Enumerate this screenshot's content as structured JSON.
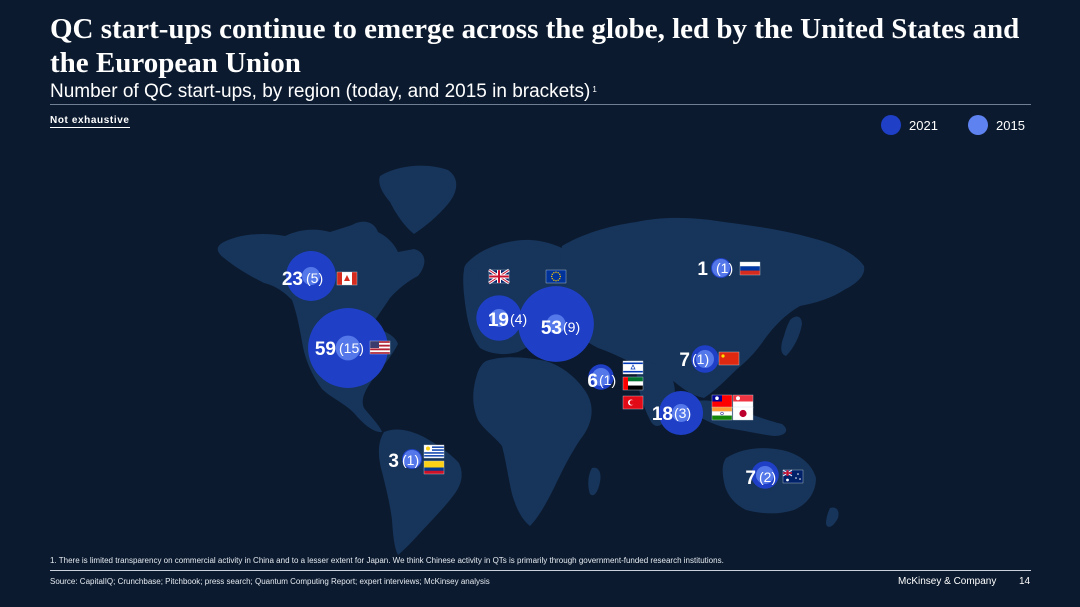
{
  "title": "QC start-ups continue to emerge across the globe, led by the United States and the European Union",
  "subtitle": "Number of QC start-ups, by region (today, and 2015 in brackets)",
  "subtitle_sup": "1",
  "note": "Not exhaustive",
  "colors": {
    "background": "#0b1a2e",
    "land": "#17345a",
    "bubble_2021": "#1f40c6",
    "bubble_2015": "#5e82f0"
  },
  "chart_data": {
    "type": "bubble-map",
    "title": "Number of QC start-ups, by region (today, and 2015 in brackets)",
    "legend": [
      {
        "label": "2021",
        "color": "#1f40c6"
      },
      {
        "label": "2015",
        "color": "#5e82f0"
      }
    ],
    "regions": [
      {
        "id": "canada",
        "name": "Canada",
        "value_2021": 23,
        "value_2015": 5,
        "label_2021": "23",
        "label_2015": "(5)",
        "flags": [
          "canada-flag"
        ]
      },
      {
        "id": "usa",
        "name": "United States",
        "value_2021": 59,
        "value_2015": 15,
        "label_2021": "59",
        "label_2015": "(15)",
        "flags": [
          "usa-flag"
        ]
      },
      {
        "id": "uk",
        "name": "United Kingdom",
        "value_2021": 19,
        "value_2015": 4,
        "label_2021": "19",
        "label_2015": "(4)",
        "flags": [
          "uk-flag"
        ]
      },
      {
        "id": "eu",
        "name": "European Union",
        "value_2021": 53,
        "value_2015": 9,
        "label_2021": "53",
        "label_2015": "(9)",
        "flags": [
          "eu-flag"
        ]
      },
      {
        "id": "russia",
        "name": "Russia",
        "value_2021": 1,
        "value_2015": 1,
        "label_2021": "1",
        "label_2015": "(1)",
        "flags": [
          "russia-flag"
        ]
      },
      {
        "id": "china",
        "name": "China",
        "value_2021": 7,
        "value_2015": 1,
        "label_2021": "7",
        "label_2015": "(1)",
        "flags": [
          "china-flag"
        ]
      },
      {
        "id": "middle-east",
        "name": "Israel, UAE, Turkey",
        "value_2021": 6,
        "value_2015": 1,
        "label_2021": "6",
        "label_2015": "(1)",
        "flags": [
          "israel-flag",
          "uae-flag",
          "turkey-flag"
        ]
      },
      {
        "id": "asia",
        "name": "Taiwan, Singapore, India, Japan",
        "value_2021": 18,
        "value_2015": 3,
        "label_2021": "18",
        "label_2015": "(3)",
        "flags": [
          "taiwan-flag",
          "singapore-flag",
          "india-flag",
          "japan-flag"
        ]
      },
      {
        "id": "south-america",
        "name": "Uruguay, Colombia",
        "value_2021": 3,
        "value_2015": 1,
        "label_2021": "3",
        "label_2015": "(1)",
        "flags": [
          "uruguay-flag",
          "colombia-flag"
        ]
      },
      {
        "id": "australia",
        "name": "Australia",
        "value_2021": 7,
        "value_2015": 2,
        "label_2021": "7",
        "label_2015": "(2)",
        "flags": [
          "australia-flag"
        ]
      }
    ]
  },
  "footnote": "1. There is limited transparency on commercial activity in China and to a lesser extent for Japan. We think Chinese activity in QTs is primarily through government-funded research institutions.",
  "source": "Source: CapitalIQ; Crunchbase; Pitchbook; press search; Quantum Computing Report; expert interviews; McKinsey analysis",
  "brand": "McKinsey & Company",
  "page_number": "14"
}
